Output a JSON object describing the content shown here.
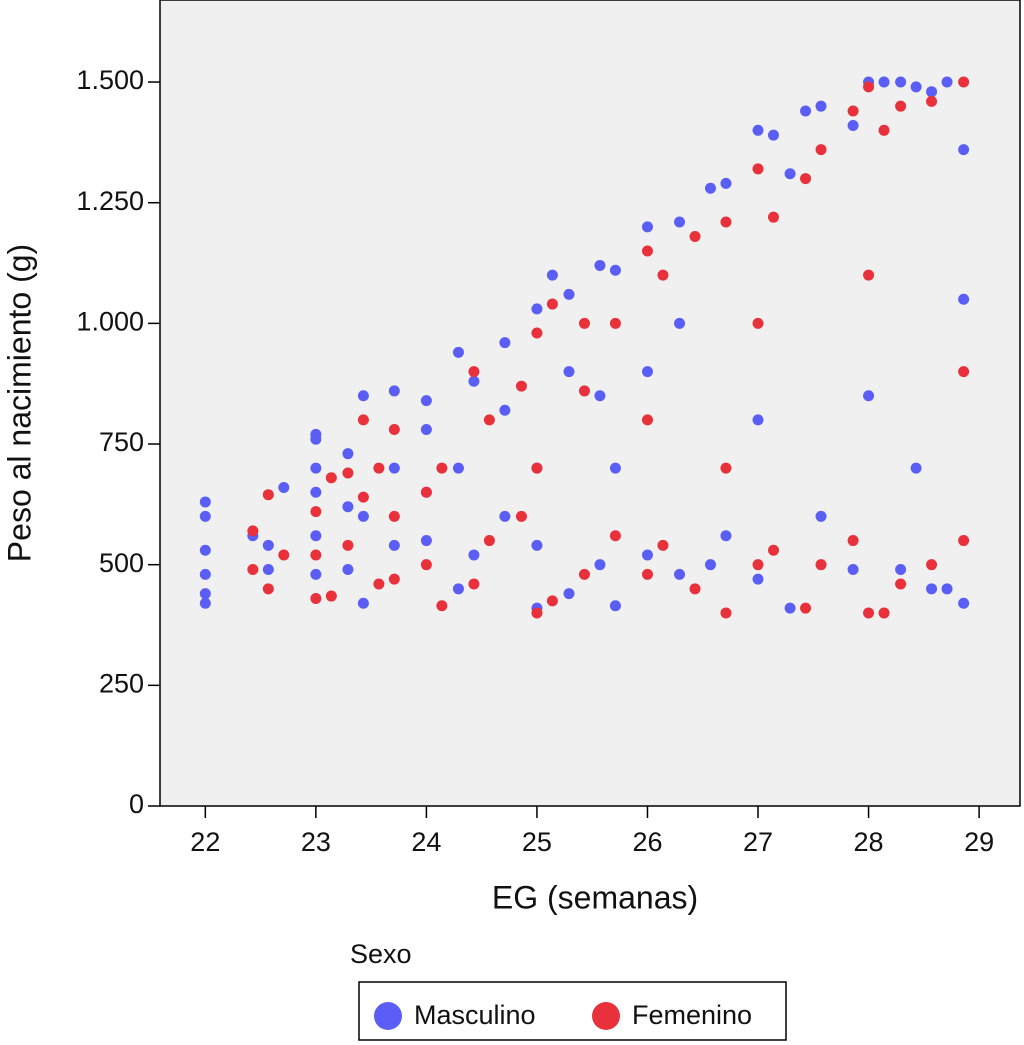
{
  "chart_data": {
    "type": "scatter",
    "x_label": "EG (semanas)",
    "y_label": "Peso al nacimiento (g)",
    "legend_title": "Sexo",
    "legend_position": "bottom",
    "xlim": [
      21.59,
      29.37
    ],
    "ylim": [
      0,
      1670
    ],
    "xticks": [
      22,
      23,
      24,
      25,
      26,
      27,
      28,
      29
    ],
    "yticks": [
      0,
      250,
      500,
      750,
      {
        "value": 1000,
        "label": "1.000"
      },
      {
        "value": 1250,
        "label": "1.250"
      },
      {
        "value": 1500,
        "label": "1.500"
      }
    ],
    "series": [
      {
        "name": "Masculino",
        "color": "#5a5ef5",
        "x": [
          22,
          22,
          22,
          22,
          22,
          22,
          22.43,
          22.57,
          22.57,
          22.71,
          23,
          23,
          23,
          23,
          23,
          23,
          23.29,
          23.29,
          23.29,
          23.43,
          23.43,
          23.43,
          23.71,
          23.71,
          23.71,
          24,
          24,
          24,
          24,
          24.29,
          24.29,
          24.29,
          24.43,
          24.43,
          24.71,
          24.71,
          24.71,
          25,
          25,
          25,
          25,
          25.14,
          25.29,
          25.29,
          25.29,
          25.57,
          25.57,
          25.57,
          25.71,
          25.71,
          25.71,
          26,
          26,
          26,
          26.29,
          26.29,
          26.29,
          26.57,
          26.57,
          26.71,
          26.71,
          27,
          27,
          27,
          27.14,
          27.29,
          27.29,
          27.43,
          27.57,
          27.57,
          27.86,
          27.86,
          28,
          28,
          28.14,
          28.29,
          28.29,
          28.43,
          28.43,
          28.57,
          28.57,
          28.71,
          28.71,
          28.86,
          28.86,
          28.86
        ],
        "values": [
          420,
          440,
          480,
          530,
          600,
          630,
          560,
          490,
          540,
          660,
          480,
          560,
          650,
          700,
          760,
          770,
          490,
          620,
          730,
          420,
          600,
          850,
          540,
          700,
          860,
          550,
          650,
          780,
          840,
          450,
          700,
          940,
          520,
          880,
          600,
          820,
          960,
          410,
          540,
          700,
          1030,
          1100,
          440,
          900,
          1060,
          500,
          850,
          1120,
          415,
          700,
          1110,
          520,
          900,
          1200,
          480,
          1000,
          1210,
          500,
          1280,
          560,
          1290,
          470,
          800,
          1400,
          1390,
          410,
          1310,
          1440,
          600,
          1450,
          490,
          1410,
          850,
          1500,
          1500,
          490,
          1500,
          700,
          1490,
          450,
          1480,
          450,
          1500,
          420,
          1050,
          1360
        ]
      },
      {
        "name": "Femenino",
        "color": "#e8313a",
        "x": [
          22.43,
          22.43,
          22.57,
          22.57,
          22.71,
          23,
          23,
          23,
          23.14,
          23.14,
          23.29,
          23.29,
          23.43,
          23.43,
          23.57,
          23.57,
          23.71,
          23.71,
          23.71,
          24,
          24,
          24.14,
          24.14,
          24.43,
          24.43,
          24.57,
          24.57,
          24.86,
          24.86,
          25,
          25,
          25,
          25.14,
          25.14,
          25.43,
          25.43,
          25.43,
          25.71,
          25.71,
          26,
          26,
          26,
          26.14,
          26.14,
          26.43,
          26.43,
          26.71,
          26.71,
          26.71,
          27,
          27,
          27,
          27.14,
          27.14,
          27.43,
          27.43,
          27.57,
          27.57,
          27.86,
          27.86,
          28,
          28,
          28,
          28.14,
          28.14,
          28.29,
          28.29,
          28.57,
          28.57,
          28.86,
          28.86,
          28.86
        ],
        "values": [
          490,
          570,
          450,
          645,
          520,
          430,
          520,
          610,
          680,
          435,
          540,
          690,
          800,
          640,
          460,
          700,
          470,
          600,
          780,
          500,
          650,
          415,
          700,
          460,
          900,
          550,
          800,
          600,
          870,
          400,
          700,
          980,
          425,
          1040,
          480,
          860,
          1000,
          560,
          1000,
          480,
          800,
          1150,
          540,
          1100,
          450,
          1180,
          400,
          700,
          1210,
          500,
          1000,
          1320,
          530,
          1220,
          410,
          1300,
          500,
          1360,
          550,
          1440,
          400,
          1100,
          1490,
          400,
          1400,
          460,
          1450,
          500,
          1460,
          550,
          900,
          1500
        ]
      }
    ]
  }
}
